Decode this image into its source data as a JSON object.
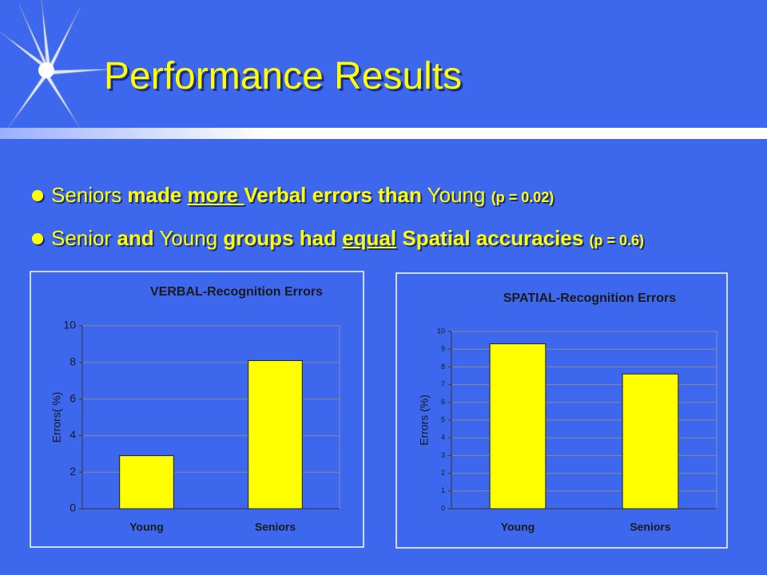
{
  "title": "Performance Results",
  "bullets": [
    [
      "Seniors",
      "made",
      "more ",
      "Verbal errors than",
      "Young",
      "(p = 0.02)"
    ],
    [
      "Senior",
      "and",
      "Young",
      "groups had",
      "equal",
      "Spatial accuracies",
      "(p = 0.6)"
    ]
  ],
  "chart_data": [
    {
      "type": "bar",
      "title": "VERBAL-Recognition Errors",
      "y_label": "Errors( %)",
      "categories": [
        "Young",
        "Seniors"
      ],
      "values": [
        2.9,
        8.1
      ],
      "color": "#ffff00",
      "ylim": [
        0,
        10
      ],
      "yticks": [
        0,
        2,
        4,
        6,
        8,
        10
      ],
      "grid": true
    },
    {
      "type": "bar",
      "title": "SPATIAL-Recognition Errors",
      "y_label": "Errors (%)",
      "categories": [
        "Young",
        "Seniors"
      ],
      "values": [
        9.3,
        7.6
      ],
      "color": "#ffff00",
      "ylim": [
        0,
        10
      ],
      "yticks": [
        0,
        1,
        2,
        3,
        4,
        5,
        6,
        7,
        8,
        9,
        10
      ],
      "grid": true
    }
  ]
}
